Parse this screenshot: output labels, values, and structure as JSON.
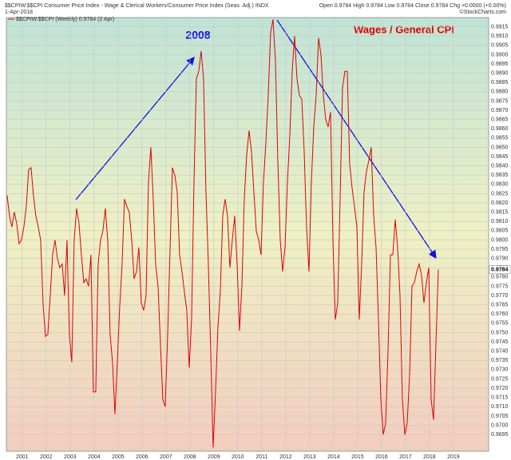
{
  "chart_data": {
    "type": "line",
    "title": "$$CPIW:$$CPI Consumer Price Index - Wage & Clerical Workers/Consumer Price Index (Seas. Adj.) INDX",
    "date": "1-Apr-2018",
    "quote": "Open 0.9784 High 0.9784 Low 0.9784 Close 0.9784 Chg +0.0000 (+0.00%)",
    "credit": "©StockCharts.com",
    "annotations": [
      "2008",
      "Wages / General CPI"
    ],
    "x": [
      2000.37,
      2000.47,
      2000.57,
      2000.67,
      2000.77,
      2000.87,
      2000.97,
      2001.07,
      2001.17,
      2001.27,
      2001.37,
      2001.47,
      2001.57,
      2001.67,
      2001.77,
      2001.87,
      2001.97,
      2002.07,
      2002.17,
      2002.27,
      2002.37,
      2002.47,
      2002.57,
      2002.67,
      2002.77,
      2002.87,
      2002.97,
      2003.07,
      2003.17,
      2003.27,
      2003.37,
      2003.47,
      2003.57,
      2003.67,
      2003.77,
      2003.87,
      2003.97,
      2004.07,
      2004.17,
      2004.27,
      2004.37,
      2004.47,
      2004.57,
      2004.67,
      2004.77,
      2004.87,
      2004.97,
      2005.07,
      2005.17,
      2005.27,
      2005.37,
      2005.47,
      2005.57,
      2005.67,
      2005.77,
      2005.87,
      2005.97,
      2006.07,
      2006.17,
      2006.27,
      2006.37,
      2006.47,
      2006.57,
      2006.67,
      2006.77,
      2006.87,
      2006.97,
      2007.07,
      2007.17,
      2007.27,
      2007.37,
      2007.47,
      2007.57,
      2007.67,
      2007.77,
      2007.87,
      2007.97,
      2008.07,
      2008.17,
      2008.27,
      2008.37,
      2008.47,
      2008.57,
      2008.67,
      2008.77,
      2008.87,
      2008.97,
      2009.07,
      2009.17,
      2009.27,
      2009.37,
      2009.47,
      2009.57,
      2009.67,
      2009.77,
      2009.87,
      2009.97,
      2010.07,
      2010.17,
      2010.27,
      2010.37,
      2010.47,
      2010.57,
      2010.67,
      2010.77,
      2010.87,
      2010.97,
      2011.07,
      2011.17,
      2011.27,
      2011.37,
      2011.47,
      2011.57,
      2011.67,
      2011.77,
      2011.87,
      2011.97,
      2012.07,
      2012.17,
      2012.27,
      2012.37,
      2012.47,
      2012.57,
      2012.67,
      2012.77,
      2012.87,
      2012.97,
      2013.07,
      2013.17,
      2013.27,
      2013.37,
      2013.47,
      2013.57,
      2013.67,
      2013.77,
      2013.87,
      2013.97,
      2014.07,
      2014.17,
      2014.27,
      2014.37,
      2014.47,
      2014.57,
      2014.67,
      2014.77,
      2014.87,
      2014.97,
      2015.07,
      2015.17,
      2015.27,
      2015.37,
      2015.47,
      2015.57,
      2015.67,
      2015.77,
      2015.87,
      2015.97,
      2016.07,
      2016.17,
      2016.27,
      2016.37,
      2016.47,
      2016.57,
      2016.67,
      2016.77,
      2016.87,
      2016.97,
      2017.07,
      2017.17,
      2017.27,
      2017.37,
      2017.47,
      2017.57,
      2017.67,
      2017.77,
      2017.87,
      2017.97,
      2018.07,
      2018.17,
      2018.27,
      2018.37
    ],
    "series": [
      {
        "name": "$$CPIW:$$CPI (Weekly) 0.9784 (2 Apr)",
        "color": "#e00000",
        "values": [
          0.9824,
          0.9813,
          0.9807,
          0.9815,
          0.9809,
          0.9798,
          0.98,
          0.9807,
          0.9818,
          0.9838,
          0.9839,
          0.9824,
          0.9813,
          0.9807,
          0.98,
          0.9766,
          0.9748,
          0.9749,
          0.977,
          0.9792,
          0.98,
          0.979,
          0.9785,
          0.9787,
          0.977,
          0.98,
          0.9749,
          0.9734,
          0.98,
          0.9817,
          0.9809,
          0.9792,
          0.9777,
          0.9779,
          0.9775,
          0.9792,
          0.9718,
          0.9718,
          0.9787,
          0.98,
          0.9805,
          0.9817,
          0.98,
          0.9749,
          0.9734,
          0.9706,
          0.9734,
          0.9764,
          0.9787,
          0.9822,
          0.9818,
          0.9815,
          0.98,
          0.9779,
          0.9783,
          0.9796,
          0.9766,
          0.9762,
          0.977,
          0.9831,
          0.985,
          0.9822,
          0.9787,
          0.9775,
          0.9744,
          0.9714,
          0.971,
          0.9748,
          0.9794,
          0.9839,
          0.9835,
          0.9826,
          0.9792,
          0.9783,
          0.9772,
          0.9762,
          0.9731,
          0.9757,
          0.9831,
          0.9887,
          0.9891,
          0.9902,
          0.9887,
          0.9826,
          0.9787,
          0.974,
          0.9688,
          0.9718,
          0.9753,
          0.9772,
          0.9813,
          0.9822,
          0.9813,
          0.9785,
          0.98,
          0.9813,
          0.9787,
          0.9751,
          0.9775,
          0.9822,
          0.9846,
          0.9859,
          0.9848,
          0.9826,
          0.9805,
          0.98,
          0.9792,
          0.9831,
          0.9852,
          0.9878,
          0.9912,
          0.9919,
          0.9897,
          0.9843,
          0.98,
          0.9783,
          0.9796,
          0.9831,
          0.9856,
          0.9891,
          0.991,
          0.9887,
          0.9878,
          0.9876,
          0.9848,
          0.9807,
          0.9783,
          0.9831,
          0.9861,
          0.9878,
          0.9909,
          0.99,
          0.9878,
          0.9865,
          0.9861,
          0.9869,
          0.98,
          0.9757,
          0.9766,
          0.9822,
          0.9882,
          0.9891,
          0.9891,
          0.9841,
          0.9828,
          0.9818,
          0.9807,
          0.9757,
          0.9787,
          0.9826,
          0.9837,
          0.9843,
          0.985,
          0.9813,
          0.9796,
          0.9757,
          0.9714,
          0.9695,
          0.9701,
          0.974,
          0.9792,
          0.9792,
          0.9811,
          0.9796,
          0.977,
          0.9714,
          0.9695,
          0.9701,
          0.9727,
          0.9775,
          0.9777,
          0.9783,
          0.9787,
          0.9781,
          0.9766,
          0.9777,
          0.9785,
          0.9714,
          0.9703,
          0.9744,
          0.9784
        ]
      }
    ],
    "xlim": [
      2000.34,
      2020.47
    ],
    "xticks": [
      2001,
      2002,
      2003,
      2004,
      2005,
      2006,
      2007,
      2008,
      2009,
      2010,
      2011,
      2012,
      2013,
      2014,
      2015,
      2016,
      2017,
      2018,
      2019
    ],
    "ylim": [
      0.9686,
      0.992
    ],
    "yticks": [
      0.9695,
      {
        "value": 0.97,
        "label": "0.9700"
      },
      0.9705,
      {
        "value": 0.971,
        "label": "0.9710"
      },
      0.9715,
      {
        "value": 0.972,
        "label": "0.9720"
      },
      0.9725,
      {
        "value": 0.973,
        "label": "0.9730"
      },
      0.9735,
      {
        "value": 0.974,
        "label": "0.9740"
      },
      0.9745,
      {
        "value": 0.975,
        "label": "0.9750"
      },
      0.9755,
      {
        "value": 0.976,
        "label": "0.9760"
      },
      0.9765,
      {
        "value": 0.977,
        "label": "0.9770"
      },
      0.9775,
      {
        "value": 0.978,
        "label": "0.9780"
      },
      0.9785,
      {
        "value": 0.979,
        "label": "0.9790"
      },
      0.9795,
      {
        "value": 0.98,
        "label": "0.9800"
      },
      0.9805,
      {
        "value": 0.981,
        "label": "0.9810"
      },
      0.9815,
      {
        "value": 0.982,
        "label": "0.9820"
      },
      0.9825,
      {
        "value": 0.983,
        "label": "0.9830"
      },
      0.9835,
      {
        "value": 0.984,
        "label": "0.9840"
      },
      0.9845,
      {
        "value": 0.985,
        "label": "0.9850"
      },
      0.9855,
      {
        "value": 0.986,
        "label": "0.9860"
      },
      0.9865,
      {
        "value": 0.987,
        "label": "0.9870"
      },
      0.9875,
      {
        "value": 0.988,
        "label": "0.9880"
      },
      0.9885,
      {
        "value": 0.989,
        "label": "0.9890"
      },
      0.9895,
      {
        "value": 0.99,
        "label": "0.9900"
      },
      0.9905,
      {
        "value": 0.991,
        "label": "0.9910"
      },
      0.9915
    ],
    "grid": true
  }
}
